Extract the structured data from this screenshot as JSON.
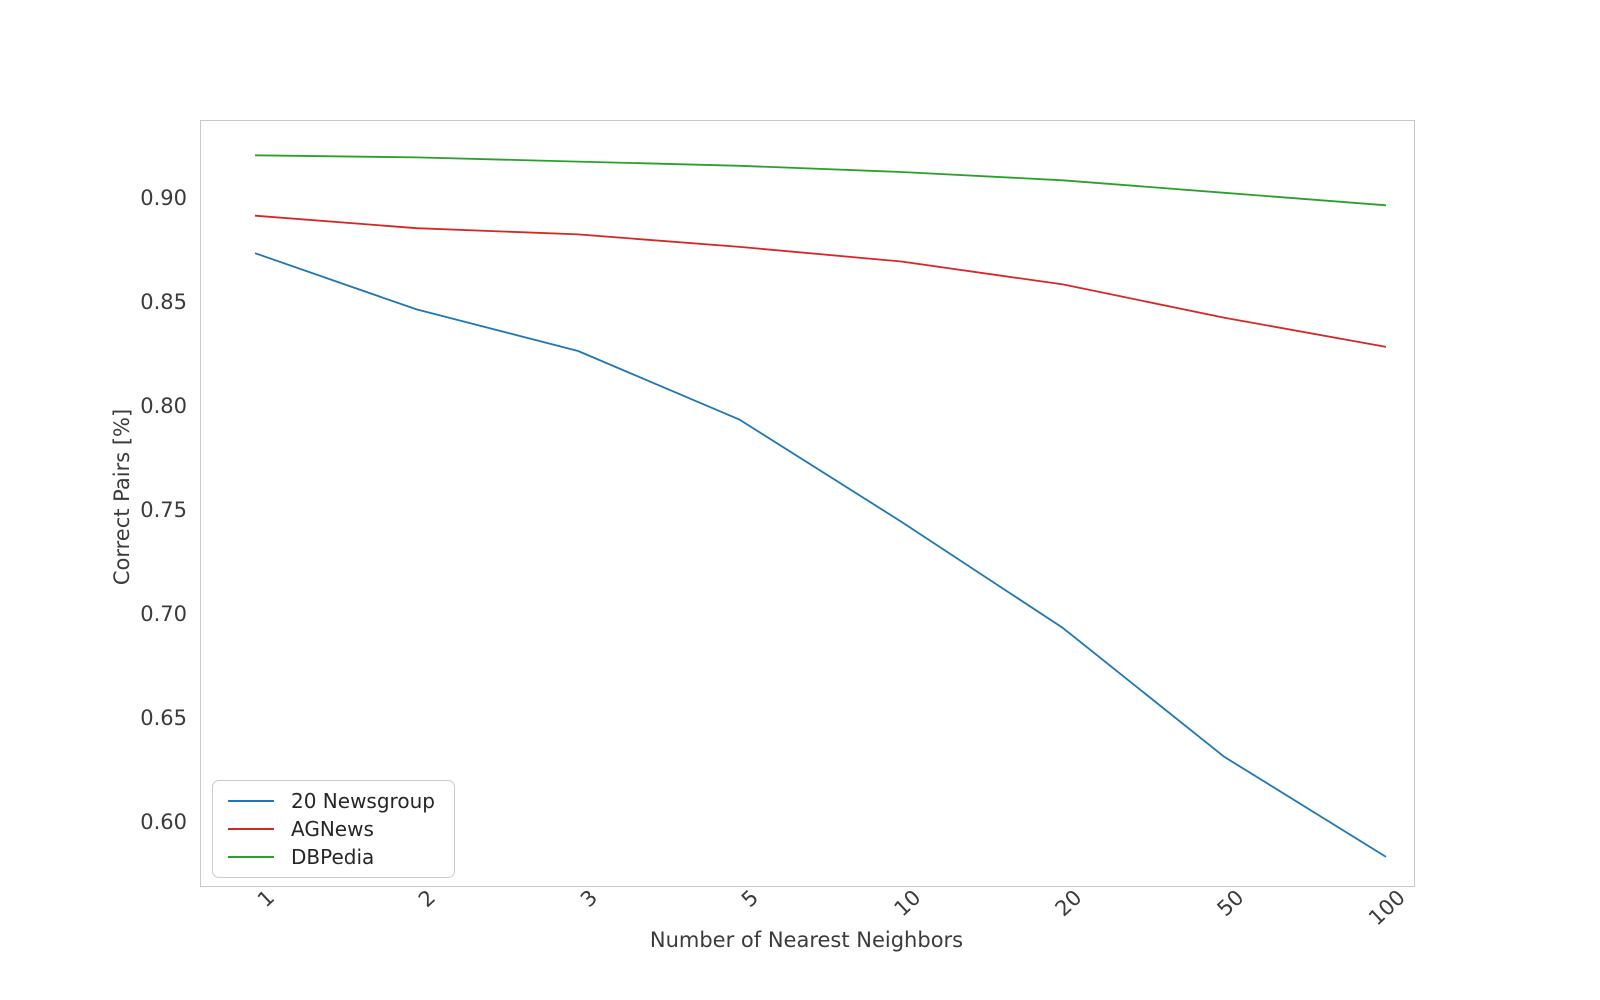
{
  "chart_data": {
    "type": "line",
    "title": "",
    "xlabel": "Number of Nearest Neighbors",
    "ylabel": "Correct Pairs [%]",
    "categories": [
      "1",
      "2",
      "3",
      "5",
      "10",
      "20",
      "50",
      "100"
    ],
    "series": [
      {
        "name": "20 Newsgroup",
        "color": "#1f77b4",
        "values": [
          0.874,
          0.847,
          0.827,
          0.794,
          0.745,
          0.694,
          0.632,
          0.584
        ]
      },
      {
        "name": "AGNews",
        "color": "#d62728",
        "values": [
          0.892,
          0.886,
          0.883,
          0.877,
          0.87,
          0.859,
          0.843,
          0.829
        ]
      },
      {
        "name": "DBPedia",
        "color": "#2ca02c",
        "values": [
          0.921,
          0.92,
          0.918,
          0.916,
          0.913,
          0.909,
          0.903,
          0.897
        ]
      }
    ],
    "ylim": [
      0.57,
      0.9375
    ],
    "yticks": [
      "0.60",
      "0.65",
      "0.70",
      "0.75",
      "0.80",
      "0.85",
      "0.90"
    ],
    "grid": false,
    "legend_position": "lower left",
    "axis_color": "#c9c9c9",
    "text_color": "#3b3b3b",
    "line_width": 1.8
  }
}
